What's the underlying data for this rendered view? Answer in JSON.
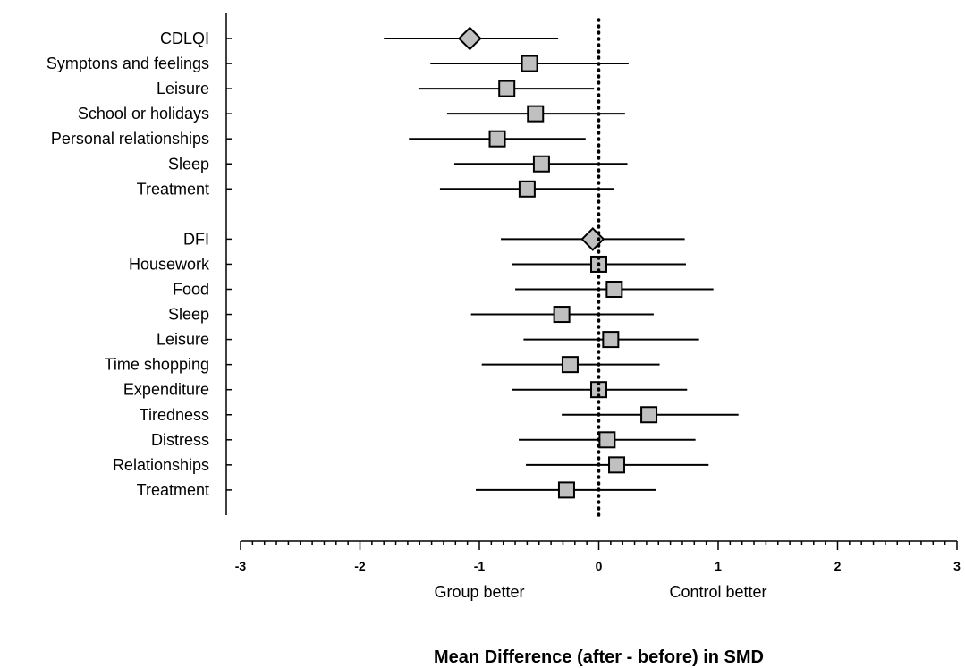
{
  "chart_data": {
    "type": "forest",
    "xlabel": "Mean Difference (after - before) in SMD",
    "xlim": [
      -3,
      3
    ],
    "xticks": [
      -3,
      -2,
      -1,
      0,
      1,
      2,
      3
    ],
    "xtick_labels": [
      "-3",
      "-2",
      "-1",
      "0",
      "1",
      "2",
      "3"
    ],
    "reference_line": 0,
    "direction_labels": {
      "left": "Group better",
      "right": "Control better"
    },
    "groups": [
      {
        "rows": [
          {
            "label": "CDLQI",
            "estimate": -1.08,
            "lower": -1.8,
            "upper": -0.34,
            "marker": "diamond"
          },
          {
            "label": "Symptons and feelings",
            "estimate": -0.58,
            "lower": -1.41,
            "upper": 0.25,
            "marker": "square"
          },
          {
            "label": "Leisure",
            "estimate": -0.77,
            "lower": -1.51,
            "upper": -0.04,
            "marker": "square"
          },
          {
            "label": "School or holidays",
            "estimate": -0.53,
            "lower": -1.27,
            "upper": 0.22,
            "marker": "square"
          },
          {
            "label": "Personal relationships",
            "estimate": -0.85,
            "lower": -1.59,
            "upper": -0.11,
            "marker": "square"
          },
          {
            "label": "Sleep",
            "estimate": -0.48,
            "lower": -1.21,
            "upper": 0.24,
            "marker": "square"
          },
          {
            "label": "Treatment",
            "estimate": -0.6,
            "lower": -1.33,
            "upper": 0.13,
            "marker": "square"
          }
        ]
      },
      {
        "rows": [
          {
            "label": "DFI",
            "estimate": -0.05,
            "lower": -0.82,
            "upper": 0.72,
            "marker": "diamond"
          },
          {
            "label": "Housework",
            "estimate": 0.0,
            "lower": -0.73,
            "upper": 0.73,
            "marker": "square"
          },
          {
            "label": "Food",
            "estimate": 0.13,
            "lower": -0.7,
            "upper": 0.96,
            "marker": "square"
          },
          {
            "label": "Sleep",
            "estimate": -0.31,
            "lower": -1.07,
            "upper": 0.46,
            "marker": "square"
          },
          {
            "label": "Leisure",
            "estimate": 0.1,
            "lower": -0.63,
            "upper": 0.84,
            "marker": "square"
          },
          {
            "label": "Time shopping",
            "estimate": -0.24,
            "lower": -0.98,
            "upper": 0.51,
            "marker": "square"
          },
          {
            "label": "Expenditure",
            "estimate": 0.0,
            "lower": -0.73,
            "upper": 0.74,
            "marker": "square"
          },
          {
            "label": "Tiredness",
            "estimate": 0.42,
            "lower": -0.31,
            "upper": 1.17,
            "marker": "square"
          },
          {
            "label": "Distress",
            "estimate": 0.07,
            "lower": -0.67,
            "upper": 0.81,
            "marker": "square"
          },
          {
            "label": "Relationships",
            "estimate": 0.15,
            "lower": -0.61,
            "upper": 0.92,
            "marker": "square"
          },
          {
            "label": "Treatment",
            "estimate": -0.27,
            "lower": -1.03,
            "upper": 0.48,
            "marker": "square"
          }
        ]
      }
    ],
    "colors": {
      "marker_fill": "#c0c0c0",
      "marker_stroke": "#000000",
      "line": "#000000"
    }
  }
}
